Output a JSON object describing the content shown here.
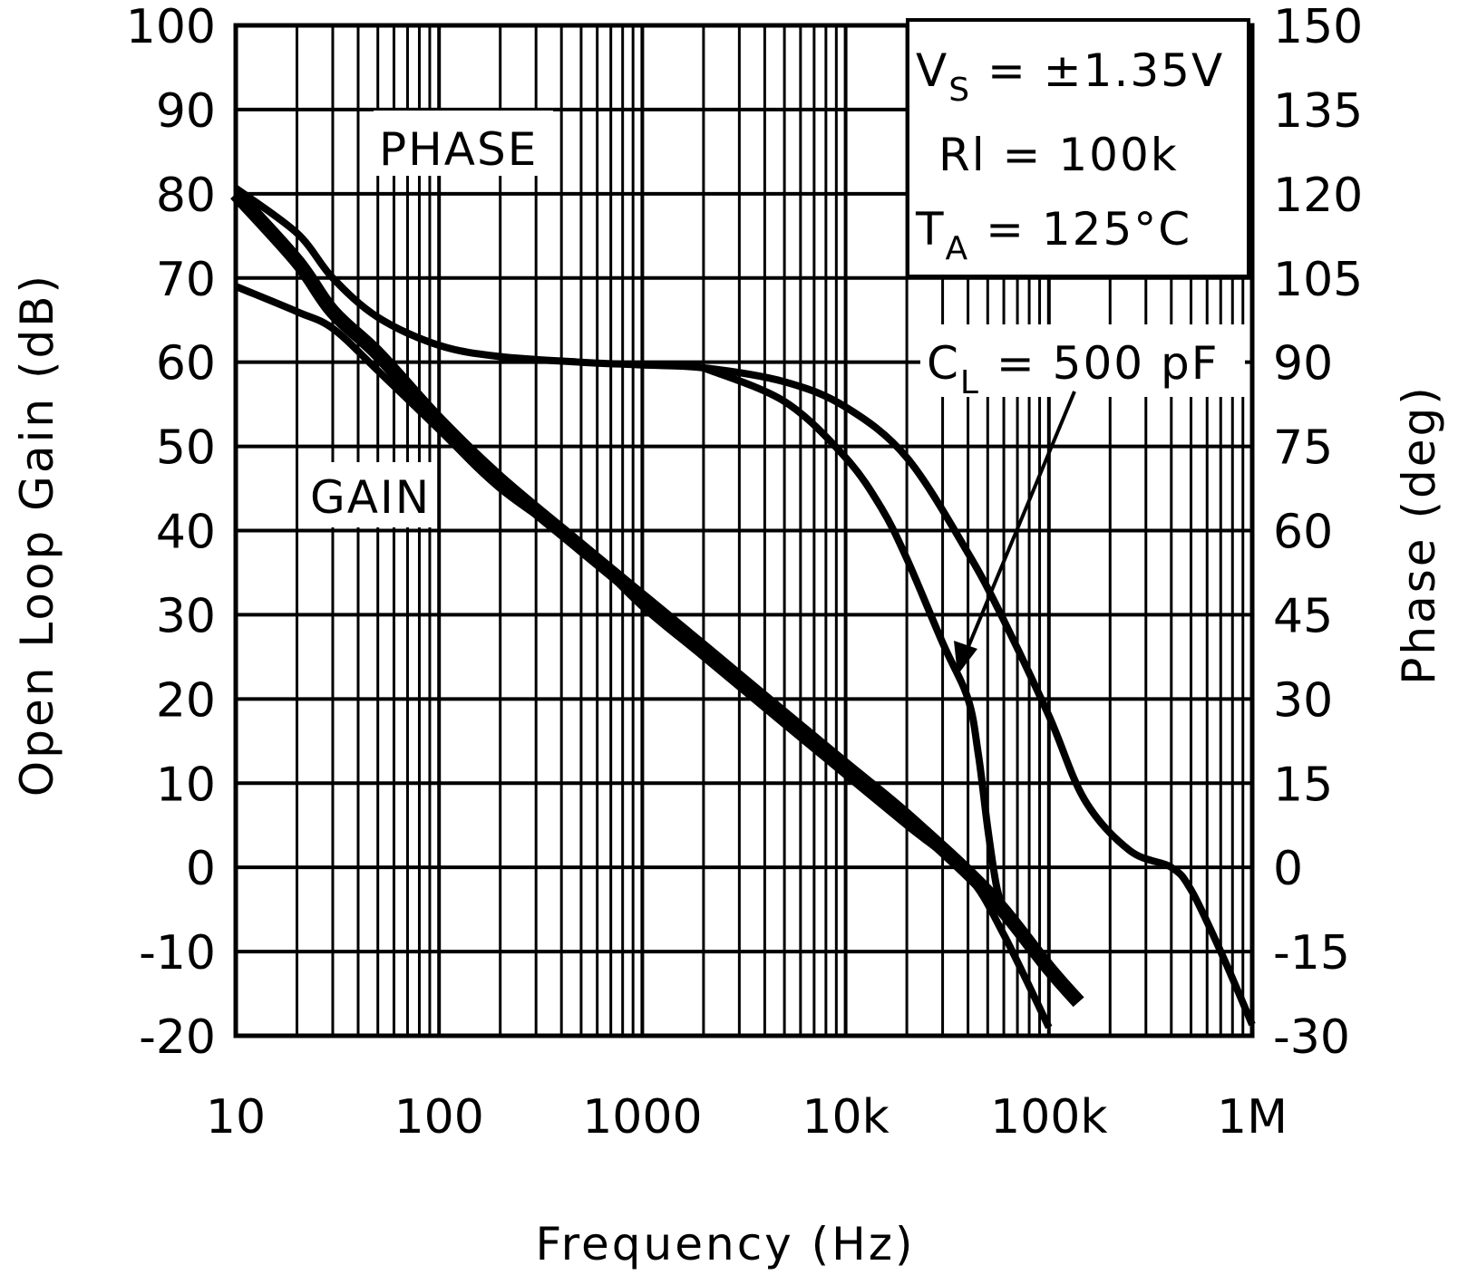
{
  "chart_data": {
    "type": "line",
    "xlabel": "Frequency (Hz)",
    "ylabel_left": "Open Loop Gain (dB)",
    "ylabel_right": "Phase (deg)",
    "x_scale": "log",
    "xlim": [
      10,
      1000000
    ],
    "ylim_left": [
      -20,
      100
    ],
    "ylim_right": [
      -30,
      150
    ],
    "grid": true,
    "x_ticks": [
      10,
      100,
      1000,
      10000,
      100000,
      1000000
    ],
    "x_tick_labels": [
      "10",
      "100",
      "1000",
      "10k",
      "100k",
      "1M"
    ],
    "y_left_ticks": [
      100,
      90,
      80,
      70,
      60,
      50,
      40,
      30,
      20,
      10,
      0,
      -10,
      -20
    ],
    "y_left_tick_labels": [
      "100",
      "90",
      "80",
      "70",
      "60",
      "50",
      "40",
      "30",
      "20",
      "10",
      "0",
      "-10",
      "-20"
    ],
    "y_right_ticks": [
      150,
      135,
      120,
      105,
      90,
      75,
      60,
      45,
      30,
      15,
      0,
      -15,
      -30
    ],
    "y_right_tick_labels": [
      "150",
      "135",
      "120",
      "105",
      "90",
      "75",
      "60",
      "45",
      "30",
      "15",
      "0",
      "-15",
      "-30"
    ],
    "series": [
      {
        "name": "GAIN",
        "axis": "left",
        "stroke": 16,
        "x": [
          10,
          20,
          30,
          50,
          100,
          200,
          500,
          1000,
          2000,
          5000,
          10000,
          20000,
          50000,
          100000,
          140000
        ],
        "y": [
          80,
          72,
          66,
          61,
          53,
          46,
          38,
          32,
          26,
          18,
          12,
          6,
          -3,
          -12,
          -16
        ]
      },
      {
        "name": "GAIN",
        "axis": "left",
        "stroke": 8,
        "x": [
          10,
          20,
          30,
          50,
          100,
          200,
          500,
          1000,
          2000,
          5000,
          10000,
          20000,
          40000,
          60000,
          100000
        ],
        "y": [
          69,
          66,
          64,
          59,
          52,
          45,
          38,
          31,
          25,
          17,
          11,
          5,
          -1,
          -8,
          -19
        ]
      },
      {
        "name": "PHASE",
        "axis": "right",
        "stroke": 8,
        "x": [
          10,
          20,
          30,
          50,
          100,
          200,
          500,
          1000,
          2000,
          5000,
          10000,
          20000,
          40000,
          60000,
          100000,
          150000,
          250000,
          400000,
          500000,
          700000,
          1000000
        ],
        "y": [
          121,
          113,
          105,
          98,
          93,
          91,
          90,
          89.5,
          89,
          86.5,
          82,
          73,
          56,
          44,
          27,
          12,
          3,
          0,
          -4,
          -15,
          -28
        ]
      },
      {
        "name": "PHASE",
        "axis": "right",
        "stroke": 8,
        "x": [
          2000,
          5000,
          10000,
          15000,
          20000,
          30000,
          40000,
          45000,
          50000,
          55000,
          60000
        ],
        "y": [
          89,
          83,
          73,
          64,
          55,
          40,
          30,
          20,
          7,
          -3,
          -8
        ]
      }
    ],
    "annotations": [
      {
        "id": "phase-label",
        "text": "PHASE"
      },
      {
        "id": "gain-label",
        "text": "GAIN"
      },
      {
        "id": "conditions",
        "lines": [
          {
            "main": "V",
            "sub": "S",
            "rest": " = ±1.35V"
          },
          {
            "main": "Rl = 100k",
            "sub": "",
            "rest": ""
          },
          {
            "main": "T",
            "sub": "A",
            "rest": " = 125°C"
          }
        ]
      },
      {
        "id": "cl-label",
        "main": "C",
        "sub": "L",
        "rest": " = 500 pF"
      }
    ]
  }
}
